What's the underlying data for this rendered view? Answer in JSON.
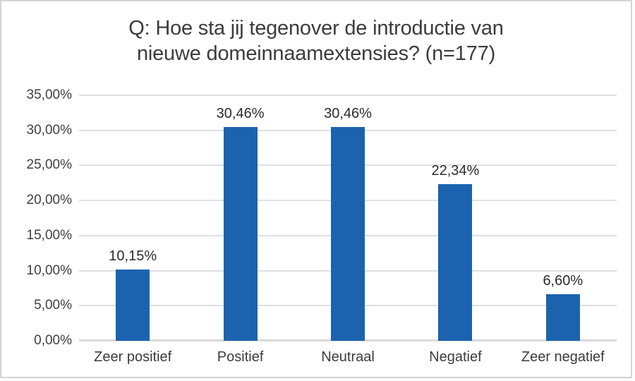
{
  "title": {
    "line1": "Q: Hoe sta jij tegenover de introductie van",
    "line2": "nieuwe domeinnaamextensies? (n=177)"
  },
  "colors": {
    "bar": "#1b63ae",
    "gridline": "#e0e0e0",
    "baseline": "#d9d9d9",
    "border": "#d4d4d4",
    "title_text": "#3c3c3c",
    "axis_text": "#404040",
    "data_label_text": "#2b2b2b"
  },
  "chart_data": {
    "type": "bar",
    "title": "Q: Hoe sta jij tegenover de introductie van nieuwe domeinnaamextensies? (n=177)",
    "n": 177,
    "categories": [
      "Zeer positief",
      "Positief",
      "Neutraal",
      "Negatief",
      "Zeer negatief"
    ],
    "values": [
      10.15,
      30.46,
      30.46,
      22.34,
      6.6
    ],
    "value_labels": [
      "10,15%",
      "30,46%",
      "30,46%",
      "22,34%",
      "6,60%"
    ],
    "xlabel": "",
    "ylabel": "",
    "ylim": [
      0,
      35
    ],
    "ytick_values": [
      0,
      5,
      10,
      15,
      20,
      25,
      30,
      35
    ],
    "ytick_labels": [
      "0,00%",
      "5,00%",
      "10,00%",
      "15,00%",
      "20,00%",
      "25,00%",
      "30,00%",
      "35,00%"
    ],
    "grid": true,
    "legend": false,
    "bar_color": "#1b63ae"
  }
}
